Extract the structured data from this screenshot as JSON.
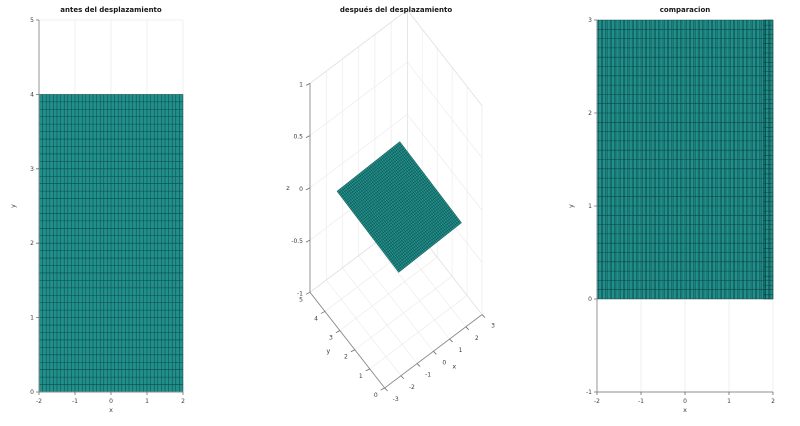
{
  "figure": {
    "background": "#ffffff",
    "face_color": "#21908c",
    "mesh_edge_color": "#062f2d",
    "grid_color": "#ececec",
    "pane_border_color": "#dedede",
    "spine_color": "#8c8c8c",
    "tick_color": "#6e6e6e",
    "tick_label_color": "#3c3c3c",
    "title_color": "#161616"
  },
  "chart_data": [
    {
      "type": "heatmap",
      "kind": "mesh-2d",
      "title": "antes del desplazamiento",
      "xlabel": "x",
      "ylabel": "y",
      "xlim": [
        -2,
        2
      ],
      "ylim": [
        0,
        5
      ],
      "xticks": [
        -2,
        -1,
        0,
        1,
        2
      ],
      "yticks": [
        0,
        1,
        2,
        3,
        4,
        5
      ],
      "grid": true,
      "anchor": [
        -2,
        0
      ],
      "meshes": [
        {
          "x": [
            -2,
            2
          ],
          "y": [
            0,
            4
          ],
          "step": 0.1,
          "fill": true
        }
      ],
      "rect": {
        "l": 39,
        "r": 183,
        "t": 20,
        "b": 392
      }
    },
    {
      "type": "heatmap",
      "kind": "mesh-3d",
      "title": "después del desplazamiento",
      "xlabel": "x",
      "ylabel": "y",
      "zlabel": "z",
      "xlim": [
        -3,
        3
      ],
      "ylim": [
        0,
        5
      ],
      "zlim": [
        -1,
        1
      ],
      "xticks": [
        -3,
        -2,
        -1,
        0,
        1,
        2,
        3
      ],
      "yticks": [
        0,
        1,
        2,
        3,
        4,
        5
      ],
      "zticks": [
        -1,
        -0.5,
        0,
        0.5,
        1
      ],
      "grid": true,
      "view": {
        "az": -37.5,
        "el": 30
      },
      "plane": {
        "center": [
          0.2,
          2.5,
          -0.1
        ],
        "u_dir": [
          0.952,
          0,
          -0.306
        ],
        "v_dir": [
          -0.091,
          0.954,
          -0.283
        ],
        "half_u": 2,
        "half_v": 2,
        "nu": 40,
        "nv": 40
      },
      "rect": {
        "l": 310,
        "r": 482,
        "t": 10,
        "b": 388
      }
    },
    {
      "type": "heatmap",
      "kind": "mesh-2d",
      "title": "comparacion",
      "xlabel": "x",
      "ylabel": "y",
      "xlim": [
        -2,
        2
      ],
      "ylim": [
        -1,
        3
      ],
      "xticks": [
        -2,
        -1,
        0,
        1,
        2
      ],
      "yticks": [
        -1,
        0,
        1,
        2,
        3
      ],
      "grid": true,
      "anchor": [
        -2,
        0
      ],
      "meshes": [
        {
          "x": [
            -2,
            2
          ],
          "y": [
            0,
            3
          ],
          "step": 0.1,
          "fill": true
        },
        {
          "x": [
            -2,
            2
          ],
          "y": [
            0,
            3
          ],
          "step": 0.1,
          "dx": 0.03,
          "rows": false
        },
        {
          "x": [
            1.78,
            2
          ],
          "y": [
            0,
            3
          ],
          "step": 0.1,
          "dx": 0.03,
          "dy": 0.045,
          "bounds": true
        }
      ],
      "rect": {
        "l": 597,
        "r": 773,
        "t": 20,
        "b": 392
      }
    }
  ]
}
